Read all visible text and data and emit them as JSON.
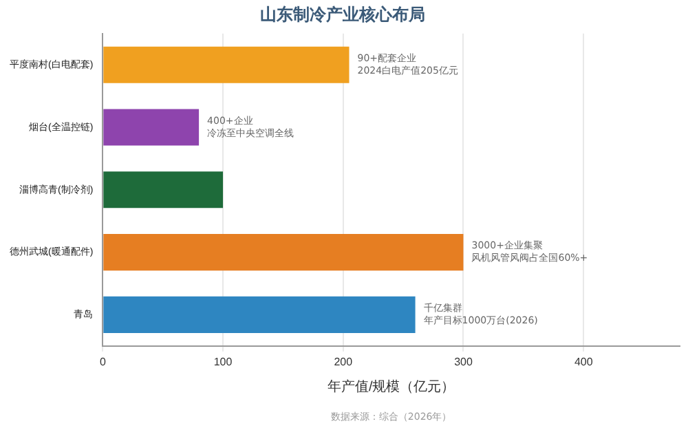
{
  "chart_data": {
    "type": "bar",
    "orientation": "horizontal",
    "title": "山东制冷产业核心布局",
    "xlabel": "年产值/规模（亿元）",
    "categories": [
      "平度南村(白电配套)",
      "烟台(全温控链)",
      "淄博高青(制冷剂)",
      "德州武城(暖通配件)",
      "青岛"
    ],
    "values": [
      205,
      80,
      100,
      300,
      260
    ],
    "colors": [
      "#f0a020",
      "#8e44ad",
      "#1e6b3a",
      "#e67e22",
      "#2e86c1"
    ],
    "xlim": [
      0,
      480
    ],
    "xticks": [
      0,
      100,
      200,
      300,
      400
    ],
    "grid": "x",
    "annotations": [
      {
        "text": "90+配套企业",
        "x": 205,
        "y": "平度南村(白电配套)"
      },
      {
        "text": "2024白电产值205亿元",
        "x": 205,
        "y": "平度南村(白电配套)"
      },
      {
        "text": "400+企业",
        "x": 80,
        "y": "烟台(全温控链)"
      },
      {
        "text": "冷冻至中央空调全线",
        "x": 80,
        "y": "烟台(全温控链)"
      },
      {
        "text": "3000+企业集聚",
        "x": 300,
        "y": "德州武城(暖通配件)"
      },
      {
        "text": "风机风管风阀占全国60%+",
        "x": 300,
        "y": "德州武城(暖通配件)"
      },
      {
        "text": "千亿集群",
        "x": 260,
        "y": "青岛"
      },
      {
        "text": "年产目标1000万台(2026)",
        "x": 260,
        "y": "青岛"
      },
      "数据来源：综合（2026年）"
    ]
  }
}
